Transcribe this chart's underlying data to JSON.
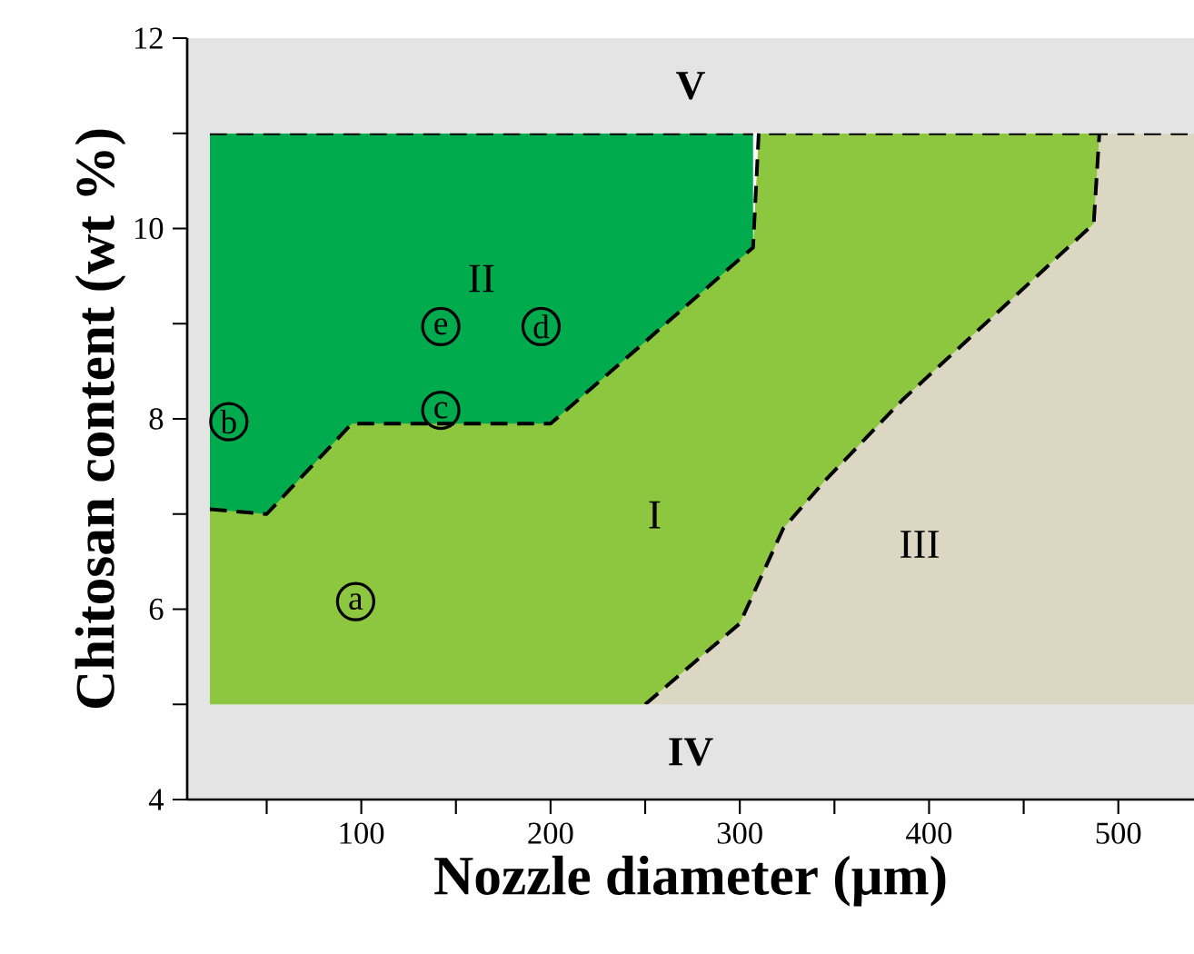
{
  "chart_data": {
    "type": "area",
    "xlabel": "Nozzle diameter (μm)",
    "ylabel": "Chitosan content (wt %)",
    "xlim": [
      8,
      540
    ],
    "ylim": [
      4,
      12
    ],
    "xticks": [
      {
        "value": 50,
        "label": null
      },
      100,
      {
        "value": 150,
        "label": null
      },
      200,
      {
        "value": 250,
        "label": null
      },
      300,
      {
        "value": 350,
        "label": null
      },
      400,
      {
        "value": 450,
        "label": null
      },
      500
    ],
    "yticks": [
      4,
      {
        "value": 5,
        "label": null
      },
      6,
      {
        "value": 7,
        "label": null
      },
      8,
      {
        "value": 9,
        "label": null
      },
      10,
      {
        "value": 11,
        "label": null
      },
      12
    ],
    "series": [
      {
        "name": "II",
        "color": "#00ab4e",
        "line_style": "dashed",
        "x": [
          20,
          50,
          95,
          200,
          307
        ],
        "values": [
          11,
          11,
          11,
          11,
          11
        ]
      },
      {
        "name": "I",
        "color": "#8dc63f",
        "line_style": "dashed",
        "x": [
          20,
          50,
          95,
          200,
          250,
          300,
          307,
          310,
          323,
          345,
          386,
          487,
          490
        ],
        "values": [
          7.05,
          7.0,
          7.95,
          7.95,
          8.81,
          9.68,
          9.8,
          11,
          11,
          11,
          11,
          11,
          11
        ]
      },
      {
        "name": "III",
        "color": "#dcd7c3",
        "line_style": "dashed",
        "x": [
          250,
          300,
          323,
          345,
          386,
          487,
          490,
          540
        ],
        "values": [
          5.0,
          5.85,
          6.85,
          7.35,
          8.2,
          10.05,
          11,
          11
        ]
      }
    ],
    "bands": [
      {
        "axis": "y",
        "from": 11,
        "to": 12,
        "label": "V",
        "color": "#e4e4e4"
      },
      {
        "axis": "y",
        "from": 4,
        "to": 5,
        "label": "IV",
        "color": "#e4e4e4"
      },
      {
        "axis": "x",
        "from": 8,
        "to": 20,
        "color": "#e4e4e4"
      }
    ],
    "annotations": [
      {
        "text": "a",
        "x": 97,
        "y": 6.08
      },
      {
        "text": "b",
        "x": 30,
        "y": 7.97
      },
      {
        "text": "c",
        "x": 142,
        "y": 8.09
      },
      {
        "text": "e",
        "x": 142,
        "y": 8.97
      },
      {
        "text": "d",
        "x": 195,
        "y": 8.97
      }
    ]
  }
}
